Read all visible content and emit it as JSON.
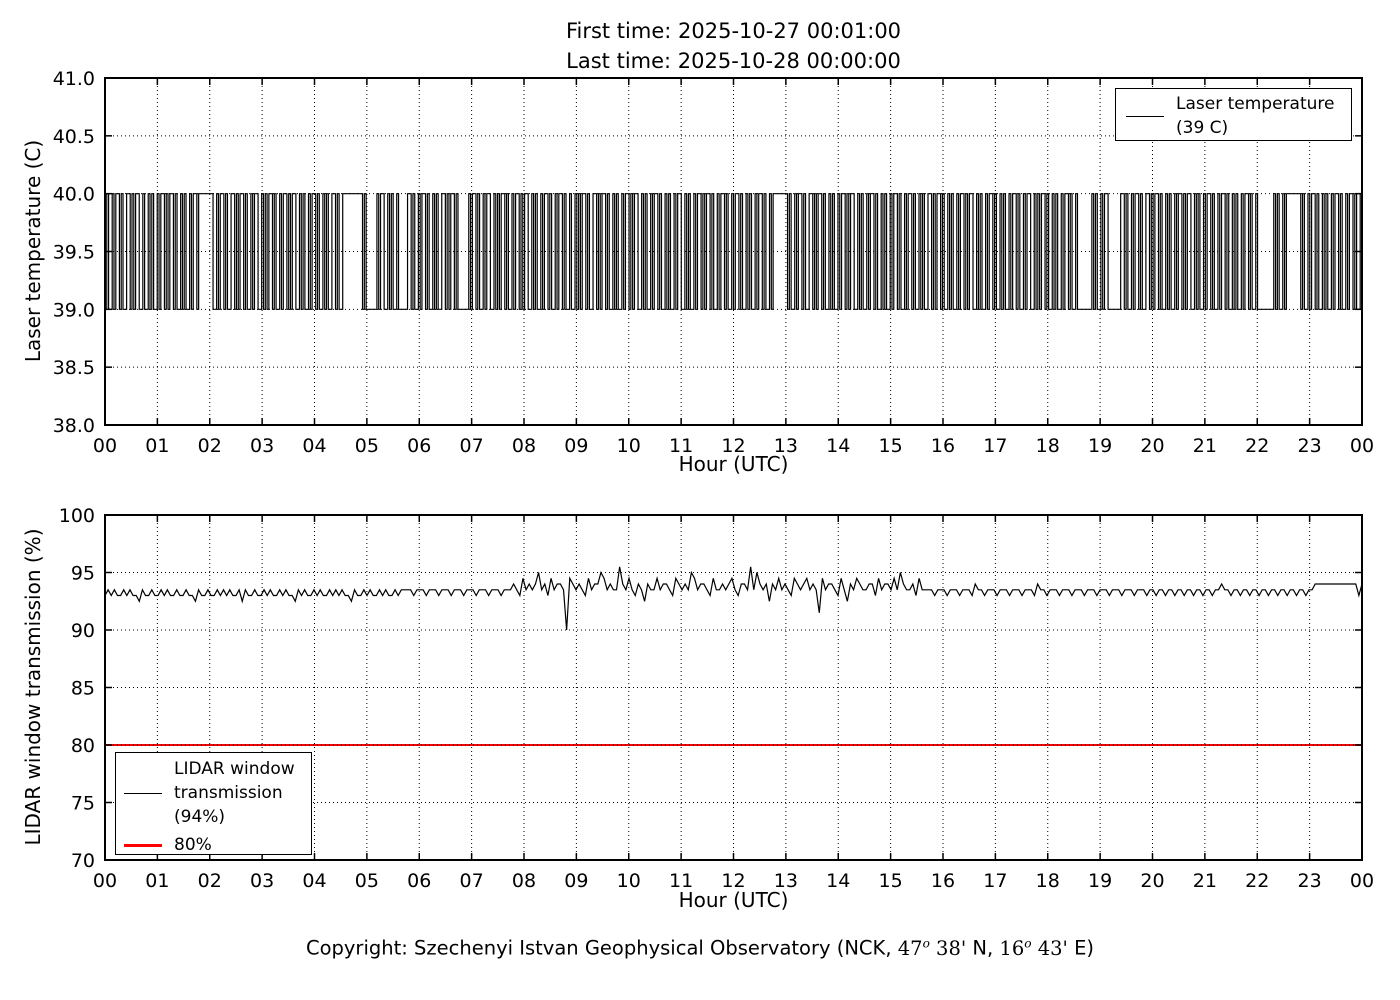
{
  "figure": {
    "title_line1": "First time: 2025-10-27 00:01:00",
    "title_line2": "Last time: 2025-10-28 00:00:00",
    "copyright": {
      "prefix": "Copyright: Szechenyi Istvan Geophysical Observatory (NCK, ",
      "lat_num": "47",
      "deg_sup": "o",
      "lat_min": " 38'",
      "n_label": " N, ",
      "lon_num": "16",
      "lon_min": " 43'",
      "e_label": " E)"
    }
  },
  "chart_data": [
    {
      "type": "line",
      "title": "First time: 2025-10-27 00:01:00 / Last time: 2025-10-28 00:00:00",
      "ylabel": "Laser temperature (C)",
      "xlabel": "Hour (UTC)",
      "ylim": [
        38,
        41
      ],
      "yticks": {
        "values": [
          41,
          40.5,
          40,
          39.5,
          39,
          38.5,
          38
        ],
        "labels": [
          "41.0",
          "40.5",
          "40.0",
          "39.5",
          "39.0",
          "38.5",
          "38.0"
        ]
      },
      "xticks": [
        "00",
        "01",
        "02",
        "03",
        "04",
        "05",
        "06",
        "07",
        "08",
        "09",
        "10",
        "11",
        "12",
        "13",
        "14",
        "15",
        "16",
        "17",
        "18",
        "19",
        "20",
        "21",
        "22",
        "23",
        "00"
      ],
      "grid": "dotted black, drawn above data",
      "legend": {
        "position": "upper right",
        "lines": [
          "Laser temperature",
          "(39 C)"
        ]
      },
      "series": [
        {
          "name": "Laser temperature (39 C)",
          "color": "#000000",
          "low": 39,
          "high": 40,
          "encoding": "square wave run-length: each char is one run; lowercase = 39 C, uppercase = 40 C; run duration = alphabet index (a/A=1 ... o/O=15) time units; x spans are normalized so all runs cover 00:00-24:00 UTC",
          "runs": "aAbAaBaAbBaAaBbAbAaAbAaBaAaBaAbAaAbAaBaHbAaBaAbBaAaBaAbAaBbAaAaBaAbAaBaAaBbAaAbAaBaAbAaAbBaAbAJaAfAaBbAaAbAeBaAbAaBaAbAaAbBaAaBaAfAaBaAbAaBbAaAaBaAbAaBaAaBbAaAbAaBaAbAaBaAbAbAaAaBaAbBaAaBaAbAaAbAaBaAaBbAaAbAaBaAbAaAbAaBbAaAbAaBaAaBaAbAaBaAbAaBaAbAaAbAaBaAbAaHaAbAaBaAbBaAaBaAbAaAbAaBaAaBbAaAbAaBaAbAaAbAaBaAbAaBaAbAaAbBaAaBaAbAaAbAaBaAaBbAaAbAaBaAbAaAbAaBaAbAaBbAaAaBaAbAaAbAaBaAbAhAaAbAaBgBaAbAaBaAbBaAaBaAbAaAbAaBaAaBbAaAbAaBaAbAaBaAbAaAbAaBaAbAiAaAbAaHaAbAaBaAbAaAbAaBaAbAaBaAbA"
        }
      ]
    },
    {
      "type": "line",
      "ylabel": "LIDAR window transmission (%)",
      "xlabel": "Hour (UTC)",
      "ylim": [
        70,
        100
      ],
      "yticks": {
        "values": [
          100,
          95,
          90,
          85,
          80,
          75,
          70
        ],
        "labels": [
          "100",
          "95",
          "90",
          "85",
          "80",
          "75",
          "70"
        ]
      },
      "xticks": [
        "00",
        "01",
        "02",
        "03",
        "04",
        "05",
        "06",
        "07",
        "08",
        "09",
        "10",
        "11",
        "12",
        "13",
        "14",
        "15",
        "16",
        "17",
        "18",
        "19",
        "20",
        "21",
        "22",
        "23",
        "00"
      ],
      "grid": "dotted black, drawn above data",
      "legend": {
        "position": "lower left",
        "lines": [
          "LIDAR window",
          "transmission",
          "(94%)"
        ],
        "threshold_label": "80%"
      },
      "series": [
        {
          "name": "LIDAR window transmission (94%)",
          "color": "#000000",
          "encoding": "one char per sample, evenly spaced 00:00-24:00 UTC; value % = 90 + base36(char) * 0.5 (0=90.0, 6=93.0, 7=93.5, 8=94.0, b=95.5)",
          "samples": "676766767665766766767667667665766766767676675766766767667676657676676766767676657667676676766767777677767776777677767776777677767778769787 8a78697887098787697 88a97877b8797687587797887698787a978876977878976887b7a8785879787698789787397887697587987788697 88797a8778697777677767776777687767776777677767776877677767776777677767776777677767776776776776776776776776778776776776776776776776776776778888888888888868"
        },
        {
          "name": "80%",
          "type": "hline",
          "value": 80,
          "color": "#ff0000"
        }
      ]
    }
  ]
}
